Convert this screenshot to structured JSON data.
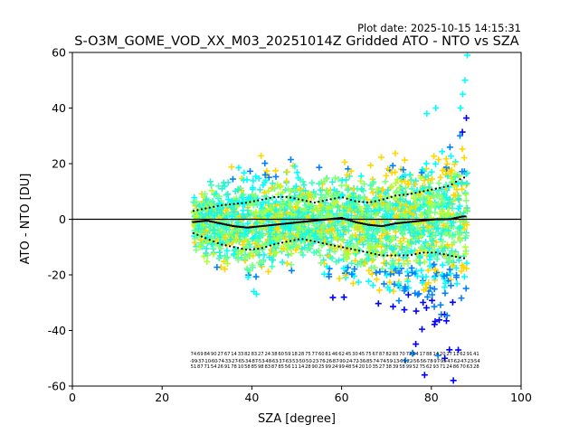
{
  "chart_data": {
    "type": "scatter",
    "title": "S-O3M_GOME_VOD_XX_M03_20251014Z Gridded ATO - NTO vs SZA",
    "plot_date": "Plot date: 2025-10-15 14:15:31",
    "xlabel": "SZA [degree]",
    "ylabel": "ATO - NTO [DU]",
    "xlim": [
      0,
      100
    ],
    "ylim": [
      -60,
      60
    ],
    "xticks": [
      "0",
      "20",
      "40",
      "60",
      "80",
      "100"
    ],
    "yticks": [
      "-60",
      "-40",
      "-20",
      "0",
      "20",
      "40",
      "60"
    ],
    "marker": "+",
    "reference_line": 0,
    "scatter_colors": [
      "#00ffff",
      "#80ff80",
      "#44ffbb",
      "#2ff0d0",
      "#ffd700",
      "#b0ff30",
      "#0080ff",
      "#0000ff",
      "#ffff00"
    ],
    "sza_range": [
      27,
      88
    ],
    "mean_curve": {
      "x": [
        27,
        30,
        33,
        36,
        39,
        42,
        45,
        48,
        51,
        54,
        57,
        60,
        63,
        66,
        69,
        72,
        75,
        78,
        81,
        84,
        87
      ],
      "y": [
        -1,
        -0.5,
        -1.5,
        -2.5,
        -3,
        -2.5,
        -2,
        -1.5,
        -1,
        -0.5,
        0,
        0.5,
        -1,
        -2,
        -2.5,
        -1.5,
        -1,
        -0.5,
        0,
        0,
        1
      ]
    },
    "upper_std_curve": {
      "x": [
        27,
        30,
        33,
        36,
        39,
        42,
        45,
        48,
        51,
        54,
        57,
        60,
        63,
        66,
        69,
        72,
        75,
        78,
        81,
        84,
        87
      ],
      "y": [
        3,
        4,
        5,
        5.5,
        6,
        7,
        8,
        8,
        7,
        6,
        7,
        8,
        6.5,
        6,
        7,
        8.5,
        9,
        10,
        11,
        12,
        15
      ]
    },
    "lower_std_curve": {
      "x": [
        27,
        30,
        33,
        36,
        39,
        42,
        45,
        48,
        51,
        54,
        57,
        60,
        63,
        66,
        69,
        72,
        75,
        78,
        81,
        84,
        87
      ],
      "y": [
        -5,
        -7,
        -9,
        -10,
        -11,
        -10.5,
        -9,
        -8,
        -7,
        -8,
        -9,
        -10,
        -11,
        -12,
        -13,
        -13,
        -13,
        -12,
        -12,
        -13,
        -14
      ]
    },
    "stat_rows_y": [
      -49,
      -51.5,
      -53.5
    ]
  }
}
